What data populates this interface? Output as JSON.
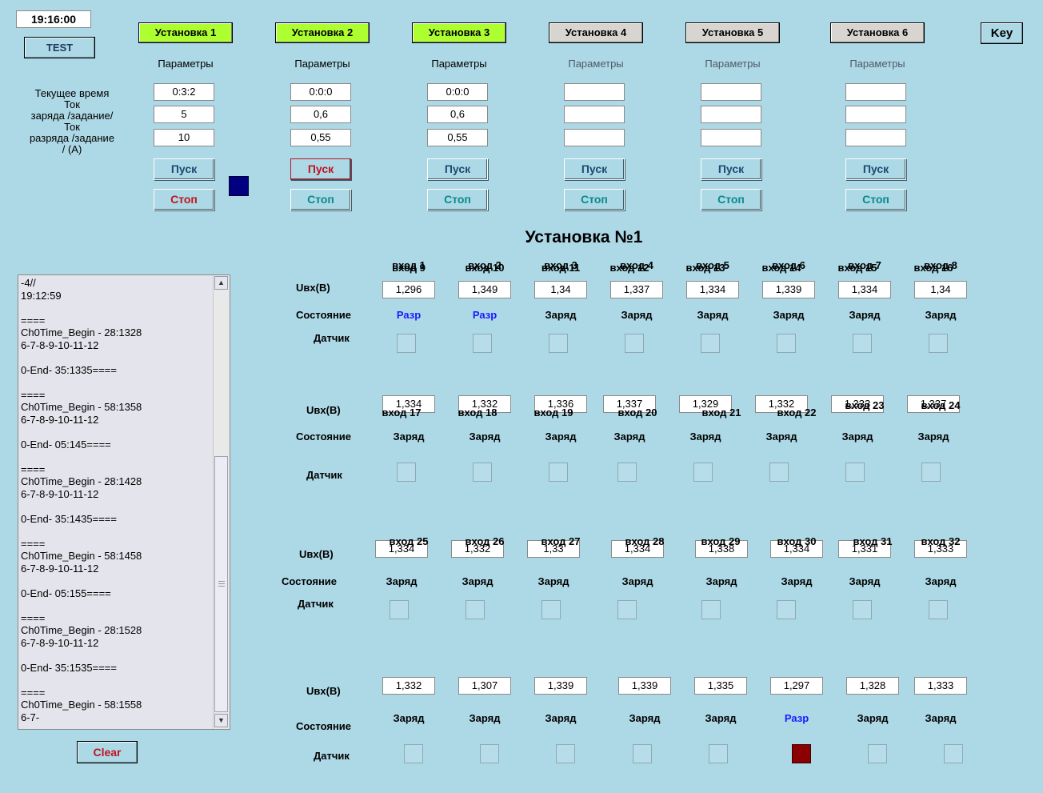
{
  "clock": "19:16:00",
  "test_label": "TEST",
  "key_label": "Key",
  "row_labels": "Текущее время\nТок\nзаряда  /задание/\nТок\nразряда /задание\n/ (A)",
  "units": [
    {
      "name": "Установка 1",
      "active": true,
      "params": "Параметры",
      "time": "0:3:2",
      "charge": "5",
      "discharge": "10",
      "start": "Пуск",
      "stop": "Стоп",
      "start_active": false,
      "stop_red": true
    },
    {
      "name": "Установка 2",
      "active": true,
      "params": "Параметры",
      "time": "0:0:0",
      "charge": "0,6",
      "discharge": "0,55",
      "start": "Пуск",
      "stop": "Стоп",
      "start_active": true,
      "stop_red": false
    },
    {
      "name": "Установка 3",
      "active": true,
      "params": "Параметры",
      "time": "0:0:0",
      "charge": "0,6",
      "discharge": "0,55",
      "start": "Пуск",
      "stop": "Стоп",
      "start_active": false,
      "stop_red": false
    },
    {
      "name": "Установка 4",
      "active": false,
      "params": "Параметры",
      "time": "",
      "charge": "",
      "discharge": "",
      "start": "Пуск",
      "stop": "Стоп",
      "start_active": false,
      "stop_red": false
    },
    {
      "name": "Установка 5",
      "active": false,
      "params": "Параметры",
      "time": "",
      "charge": "",
      "discharge": "",
      "start": "Пуск",
      "stop": "Стоп",
      "start_active": false,
      "stop_red": false
    },
    {
      "name": "Установка 6",
      "active": false,
      "params": "Параметры",
      "time": "",
      "charge": "",
      "discharge": "",
      "start": "Пуск",
      "stop": "Стоп",
      "start_active": false,
      "stop_red": false
    }
  ],
  "colors": {
    "indicator": "#000080",
    "tab_active": "#adff2f",
    "tab_inactive": "#d8d4d0",
    "sensor_on": "#8b0000"
  },
  "log": "-4//\n19:12:59\n\n====\nCh0Time_Begin - 28:1328\n6-7-8-9-10-11-12\n\n0-End- 35:1335====\n\n====\nCh0Time_Begin - 58:1358\n6-7-8-9-10-11-12\n\n0-End- 05:145====\n\n====\nCh0Time_Begin - 28:1428\n6-7-8-9-10-11-12\n\n0-End- 35:1435====\n\n====\nCh0Time_Begin - 58:1458\n6-7-8-9-10-11-12\n\n0-End- 05:155====\n\n====\nCh0Time_Begin - 28:1528\n6-7-8-9-10-11-12\n\n0-End- 35:1535====\n\n====\nCh0Time_Begin - 58:1558\n6-7-",
  "clear_label": "Clear",
  "panel_title": "Установка №1",
  "labels": {
    "voltage": "Uвх(В)",
    "state": "Состояние",
    "sensor": "Датчик"
  },
  "channels": [
    {
      "name": "вход 1",
      "value": "1,296",
      "state": "Разр",
      "sensor": false
    },
    {
      "name": "вход 2",
      "value": "1,349",
      "state": "Разр",
      "sensor": false
    },
    {
      "name": "вход 3",
      "value": "1,34",
      "state": "Заряд",
      "sensor": false
    },
    {
      "name": "вход 4",
      "value": "1,337",
      "state": "Заряд",
      "sensor": false
    },
    {
      "name": "вход 5",
      "value": "1,334",
      "state": "Заряд",
      "sensor": false
    },
    {
      "name": "вход 6",
      "value": "1,339",
      "state": "Заряд",
      "sensor": false
    },
    {
      "name": "вход 7",
      "value": "1,334",
      "state": "Заряд",
      "sensor": false
    },
    {
      "name": "вход 8",
      "value": "1,34",
      "state": "Заряд",
      "sensor": false
    },
    {
      "name": "вход 9",
      "value": "1,334",
      "state": "Заряд",
      "sensor": false
    },
    {
      "name": "вход 10",
      "value": "1,332",
      "state": "Заряд",
      "sensor": false
    },
    {
      "name": "вход 11",
      "value": "1,336",
      "state": "Заряд",
      "sensor": false
    },
    {
      "name": "вход 12",
      "value": "1,337",
      "state": "Заряд",
      "sensor": false
    },
    {
      "name": "вход 13",
      "value": "1,329",
      "state": "Заряд",
      "sensor": false
    },
    {
      "name": "вход 14",
      "value": "1,332",
      "state": "Заряд",
      "sensor": false
    },
    {
      "name": "вход 15",
      "value": "1,333",
      "state": "Заряд",
      "sensor": false
    },
    {
      "name": "вход 16",
      "value": "1,337",
      "state": "Заряд",
      "sensor": false
    },
    {
      "name": "вход 17",
      "value": "1,334",
      "state": "Заряд",
      "sensor": false
    },
    {
      "name": "вход 18",
      "value": "1,332",
      "state": "Заряд",
      "sensor": false
    },
    {
      "name": "вход 19",
      "value": "1,33",
      "state": "Заряд",
      "sensor": false
    },
    {
      "name": "вход 20",
      "value": "1,334",
      "state": "Заряд",
      "sensor": false
    },
    {
      "name": "вход 21",
      "value": "1,338",
      "state": "Заряд",
      "sensor": false
    },
    {
      "name": "вход 22",
      "value": "1,334",
      "state": "Заряд",
      "sensor": false
    },
    {
      "name": "вход 23",
      "value": "1,331",
      "state": "Заряд",
      "sensor": false
    },
    {
      "name": "вход 24",
      "value": "1,333",
      "state": "Заряд",
      "sensor": false
    },
    {
      "name": "вход 25",
      "value": "1,332",
      "state": "Заряд",
      "sensor": false
    },
    {
      "name": "вход 26",
      "value": "1,307",
      "state": "Заряд",
      "sensor": false
    },
    {
      "name": "вход 27",
      "value": "1,339",
      "state": "Заряд",
      "sensor": false
    },
    {
      "name": "вход 28",
      "value": "1,339",
      "state": "Заряд",
      "sensor": false
    },
    {
      "name": "вход 29",
      "value": "1,335",
      "state": "Заряд",
      "sensor": false
    },
    {
      "name": "вход 30",
      "value": "1,297",
      "state": "Разр",
      "sensor": true
    },
    {
      "name": "вход 31",
      "value": "1,328",
      "state": "Заряд",
      "sensor": false
    },
    {
      "name": "вход 32",
      "value": "1,333",
      "state": "Заряд",
      "sensor": false
    }
  ]
}
